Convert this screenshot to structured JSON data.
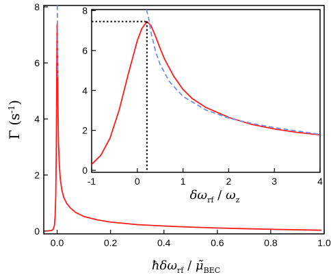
{
  "colors": {
    "model": "#ff1a1a",
    "asymptote": "#6f8ff0",
    "axes": "#000000",
    "marker": "#000000"
  },
  "chart_data": [
    {
      "type": "line",
      "panel": "main",
      "xlabel_main": "ħδω",
      "xlabel_sub": "rf",
      "xlabel_sep": " / ",
      "xlabel_mu": "μ̃",
      "xlabel_mu_sub": "BEC",
      "ylabel_main": "Γ (s",
      "ylabel_sup": "-1",
      "ylabel_close": ")",
      "xlim": [
        -0.05,
        1.0
      ],
      "ylim": [
        -0.1,
        8.05
      ],
      "xticks": [
        0.0,
        0.2,
        0.4,
        0.6,
        0.8,
        1.0
      ],
      "xtick_labels": [
        "0.0",
        "0.2",
        "0.4",
        "0.6",
        "0.8",
        "1.0"
      ],
      "yticks": [
        0,
        2,
        4,
        6,
        8
      ],
      "ytick_labels": [
        "0",
        "2",
        "4",
        "6",
        "8"
      ],
      "series": [
        {
          "style": "solid",
          "color_key": "model",
          "x": [
            -0.04,
            -0.02,
            -0.015,
            -0.01,
            -0.007,
            -0.005,
            -0.003,
            -0.0015,
            0.0,
            0.0015,
            0.003,
            0.005,
            0.008,
            0.012,
            0.018,
            0.025,
            0.035,
            0.05,
            0.07,
            0.1,
            0.15,
            0.2,
            0.3,
            0.4,
            0.5,
            0.6,
            0.7,
            0.8,
            0.9,
            0.99
          ],
          "y": [
            0.0,
            0.02,
            0.06,
            0.2,
            0.6,
            1.3,
            3.0,
            5.8,
            7.4,
            6.2,
            4.5,
            3.2,
            2.4,
            1.85,
            1.45,
            1.2,
            1.0,
            0.82,
            0.66,
            0.52,
            0.4,
            0.32,
            0.23,
            0.18,
            0.14,
            0.11,
            0.085,
            0.065,
            0.045,
            0.03
          ]
        },
        {
          "style": "dashed",
          "color_key": "asymptote",
          "x": [
            0.0006,
            0.001,
            0.0015,
            0.0022,
            0.003
          ],
          "y": [
            8.05,
            7.6,
            6.9,
            6.2,
            5.5
          ]
        }
      ]
    },
    {
      "type": "line",
      "panel": "inset",
      "xlabel_main": "δω",
      "xlabel_sub": "rf",
      "xlabel_sep": " / ",
      "xlabel_w": "ω",
      "xlabel_w_sub": "z",
      "xlim": [
        -1.0,
        4.0
      ],
      "ylim": [
        -0.1,
        8.05
      ],
      "xticks": [
        -1,
        0,
        1,
        2,
        3,
        4
      ],
      "xtick_labels": [
        "-1",
        "0",
        "1",
        "2",
        "3",
        "4"
      ],
      "yticks": [
        0,
        2,
        4,
        6,
        8
      ],
      "ytick_labels": [
        "0",
        "2",
        "4",
        "6",
        "8"
      ],
      "peak_marker": {
        "x": 0.21,
        "y": 7.45
      },
      "series": [
        {
          "style": "solid",
          "color_key": "model",
          "x": [
            -1.0,
            -0.8,
            -0.6,
            -0.4,
            -0.2,
            0.0,
            0.1,
            0.21,
            0.3,
            0.4,
            0.5,
            0.6,
            0.8,
            1.0,
            1.2,
            1.5,
            2.0,
            2.5,
            3.0,
            3.5,
            4.0
          ],
          "y": [
            0.3,
            0.75,
            1.6,
            3.0,
            4.8,
            6.5,
            7.1,
            7.45,
            7.25,
            6.7,
            6.1,
            5.55,
            4.7,
            4.05,
            3.6,
            3.15,
            2.65,
            2.3,
            2.07,
            1.9,
            1.78
          ]
        },
        {
          "style": "dashed",
          "color_key": "asymptote",
          "x": [
            0.2,
            0.25,
            0.3,
            0.4,
            0.5,
            0.7,
            1.0,
            1.5,
            2.0,
            2.5,
            3.0,
            3.5,
            4.0
          ],
          "y": [
            8.05,
            7.6,
            6.9,
            5.95,
            5.3,
            4.45,
            3.7,
            3.02,
            2.62,
            2.35,
            2.14,
            1.97,
            1.8
          ]
        }
      ]
    }
  ]
}
